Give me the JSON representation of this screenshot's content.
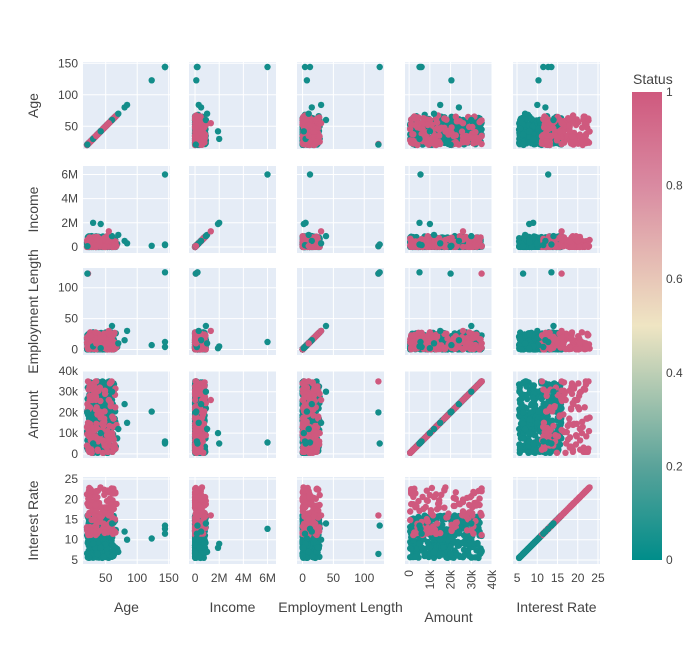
{
  "chart_data": {
    "type": "scatter",
    "subtype": "scatter-matrix",
    "variables": [
      {
        "key": "age",
        "label": "Age",
        "range": [
          14,
          152
        ],
        "ticks": [
          50,
          100,
          150
        ],
        "tick_labels": [
          "50",
          "100",
          "150"
        ]
      },
      {
        "key": "income",
        "label": "Income",
        "range": [
          -500000,
          6700000
        ],
        "ticks": [
          0,
          2000000,
          4000000,
          6000000
        ],
        "tick_labels": [
          "0",
          "2M",
          "4M",
          "6M"
        ]
      },
      {
        "key": "employment_length",
        "label": "Employment Length",
        "range": [
          -9,
          132
        ],
        "ticks": [
          0,
          50,
          100
        ],
        "tick_labels": [
          "0",
          "50",
          "100"
        ]
      },
      {
        "key": "amount",
        "label": "Amount",
        "range": [
          -2000,
          40000
        ],
        "ticks": [
          0,
          10000,
          20000,
          30000,
          40000
        ],
        "tick_labels": [
          "0",
          "10k",
          "20k",
          "30k",
          "40k"
        ]
      },
      {
        "key": "interest_rate",
        "label": "Interest Rate",
        "range": [
          4,
          25.5
        ],
        "ticks": [
          5,
          10,
          15,
          20,
          25
        ],
        "tick_labels": [
          "5",
          "10",
          "15",
          "20",
          "25"
        ]
      }
    ],
    "x_tick_labels_rotated": [
      "amount"
    ],
    "color_variable": "Status",
    "colorscale": [
      [
        0,
        "#008d8a"
      ],
      [
        0.2,
        "#5aa39a"
      ],
      [
        0.5,
        "#efe5c3"
      ],
      [
        0.8,
        "#d98aa1"
      ],
      [
        1,
        "#cf597e"
      ]
    ],
    "colorbar": {
      "title": "Status",
      "ticks": [
        0,
        0.2,
        0.4,
        0.6,
        0.8,
        1
      ],
      "tick_labels": [
        "0",
        "0.2",
        "0.4",
        "0.6",
        "0.8",
        "1"
      ],
      "range": [
        0,
        1
      ]
    },
    "status_colors": {
      "0": "#138d8a",
      "1": "#cf597e"
    },
    "grid": true,
    "points": [
      {
        "age": 144,
        "income": 6000000,
        "employment_length": 12,
        "amount": 5500,
        "interest_rate": 12.7,
        "status": 0
      },
      {
        "age": 144,
        "income": 200000,
        "employment_length": 125,
        "amount": 5000,
        "interest_rate": 13.5,
        "status": 0
      },
      {
        "age": 123,
        "income": 100000,
        "employment_length": 7,
        "amount": 20400,
        "interest_rate": 10.3,
        "status": 0
      },
      {
        "age": 144,
        "income": 150000,
        "employment_length": 4,
        "amount": 6000,
        "interest_rate": 11.5,
        "status": 0
      },
      {
        "age": 22,
        "income": 60000,
        "employment_length": 123,
        "amount": 35000,
        "interest_rate": 16,
        "status": 1
      },
      {
        "age": 21,
        "income": 60000,
        "employment_length": 123,
        "amount": 20000,
        "interest_rate": 6.5,
        "status": 0
      },
      {
        "age": 30,
        "income": 2000000,
        "employment_length": 5,
        "amount": 5000,
        "interest_rate": 9,
        "status": 0
      },
      {
        "age": 42,
        "income": 1900000,
        "employment_length": 2,
        "amount": 10000,
        "interest_rate": 8,
        "status": 0
      },
      {
        "age": 70,
        "income": 1000000,
        "employment_length": 10,
        "amount": 12000,
        "interest_rate": 7,
        "status": 0
      },
      {
        "age": 80,
        "income": 500000,
        "employment_length": 15,
        "amount": 24000,
        "interest_rate": 12,
        "status": 0
      },
      {
        "age": 84,
        "income": 300000,
        "employment_length": 30,
        "amount": 15000,
        "interest_rate": 10,
        "status": 0
      },
      {
        "age": 60,
        "income": 900000,
        "employment_length": 38,
        "amount": 30000,
        "interest_rate": 14,
        "status": 0
      },
      {
        "age": 55,
        "income": 1300000,
        "employment_length": 30,
        "amount": 26000,
        "interest_rate": 16,
        "status": 1
      },
      {
        "age": 35,
        "income": 80000,
        "employment_length": 10,
        "amount": 35000,
        "interest_rate": 22,
        "status": 1
      }
    ]
  }
}
